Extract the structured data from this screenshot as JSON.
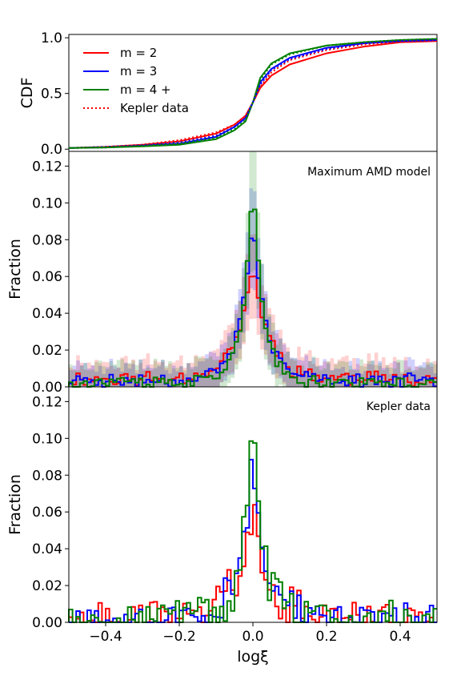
{
  "figure": {
    "xlabel": "logξ",
    "xticks": [
      "−0.4",
      "−0.2",
      "0.0",
      "0.2",
      "0.4"
    ],
    "xtick_values": [
      -0.4,
      -0.2,
      0.0,
      0.2,
      0.4
    ]
  },
  "colors": {
    "m2": "#ff0000",
    "m3": "#0000ff",
    "m4": "#008000"
  },
  "chart_data": [
    {
      "type": "line",
      "panel": "cdf",
      "ylabel": "CDF",
      "xlim": [
        -0.5,
        0.5
      ],
      "ylim": [
        -0.02,
        1.03
      ],
      "yticks": [
        "0.0",
        "0.5",
        "1.0"
      ],
      "ytick_values": [
        0.0,
        0.5,
        1.0
      ],
      "legend": {
        "placement": "top-left",
        "entries": [
          "m = 2",
          "m = 3",
          "m = 4 +",
          "Kepler data"
        ]
      },
      "series": [
        {
          "name": "m = 2",
          "style": "solid",
          "color": "#ff0000",
          "x": [
            -0.5,
            -0.4,
            -0.3,
            -0.2,
            -0.1,
            -0.05,
            -0.02,
            0.0,
            0.02,
            0.05,
            0.1,
            0.2,
            0.3,
            0.4,
            0.5
          ],
          "y": [
            0.01,
            0.02,
            0.04,
            0.07,
            0.14,
            0.22,
            0.3,
            0.42,
            0.55,
            0.66,
            0.76,
            0.86,
            0.92,
            0.96,
            0.97
          ]
        },
        {
          "name": "m = 3",
          "style": "solid",
          "color": "#0000ff",
          "x": [
            -0.5,
            -0.4,
            -0.3,
            -0.2,
            -0.1,
            -0.05,
            -0.02,
            0.0,
            0.02,
            0.05,
            0.1,
            0.2,
            0.3,
            0.4,
            0.5
          ],
          "y": [
            0.01,
            0.015,
            0.03,
            0.05,
            0.11,
            0.2,
            0.28,
            0.42,
            0.6,
            0.72,
            0.82,
            0.91,
            0.95,
            0.97,
            0.98
          ]
        },
        {
          "name": "m = 4 +",
          "style": "solid",
          "color": "#008000",
          "x": [
            -0.5,
            -0.4,
            -0.3,
            -0.2,
            -0.1,
            -0.05,
            -0.02,
            0.0,
            0.02,
            0.05,
            0.1,
            0.2,
            0.3,
            0.4,
            0.5
          ],
          "y": [
            0.01,
            0.015,
            0.025,
            0.04,
            0.09,
            0.17,
            0.25,
            0.42,
            0.64,
            0.77,
            0.86,
            0.93,
            0.96,
            0.98,
            0.99
          ]
        },
        {
          "name": "Kepler m = 2",
          "style": "dotted",
          "color": "#ff0000",
          "x": [
            -0.5,
            -0.4,
            -0.3,
            -0.2,
            -0.1,
            -0.05,
            -0.02,
            0.0,
            0.02,
            0.05,
            0.1,
            0.2,
            0.3,
            0.4,
            0.5
          ],
          "y": [
            0.01,
            0.02,
            0.04,
            0.08,
            0.15,
            0.22,
            0.3,
            0.42,
            0.56,
            0.69,
            0.8,
            0.89,
            0.94,
            0.97,
            0.98
          ]
        },
        {
          "name": "Kepler m = 3",
          "style": "dotted",
          "color": "#0000ff",
          "x": [
            -0.5,
            -0.4,
            -0.3,
            -0.2,
            -0.1,
            -0.05,
            -0.02,
            0.0,
            0.02,
            0.05,
            0.1,
            0.2,
            0.3,
            0.4,
            0.5
          ],
          "y": [
            0.01,
            0.02,
            0.035,
            0.06,
            0.12,
            0.2,
            0.28,
            0.42,
            0.58,
            0.71,
            0.81,
            0.9,
            0.95,
            0.97,
            0.98
          ]
        },
        {
          "name": "Kepler m = 4 +",
          "style": "dotted",
          "color": "#008000",
          "x": [
            -0.5,
            -0.4,
            -0.3,
            -0.2,
            -0.1,
            -0.05,
            -0.02,
            0.0,
            0.02,
            0.05,
            0.1,
            0.2,
            0.3,
            0.4,
            0.5
          ],
          "y": [
            0.01,
            0.015,
            0.03,
            0.05,
            0.1,
            0.18,
            0.26,
            0.42,
            0.62,
            0.76,
            0.85,
            0.93,
            0.96,
            0.98,
            0.99
          ]
        }
      ]
    },
    {
      "type": "line",
      "panel": "model",
      "annotation": "Maximum AMD model",
      "ylabel": "Fraction",
      "xlim": [
        -0.5,
        0.5
      ],
      "ylim": [
        0.0,
        0.128
      ],
      "yticks": [
        "0.00",
        "0.02",
        "0.04",
        "0.06",
        "0.08",
        "0.10",
        "0.12"
      ],
      "ytick_values": [
        0.0,
        0.02,
        0.04,
        0.06,
        0.08,
        0.1,
        0.12
      ],
      "bins": {
        "start": -0.5,
        "width": 0.01,
        "count": 100
      },
      "series": [
        {
          "name": "m = 2",
          "color": "#ff0000",
          "peak": 0.062,
          "width": 0.045,
          "base": 0.004,
          "band": 0.008,
          "seed": 11
        },
        {
          "name": "m = 3",
          "color": "#0000ff",
          "peak": 0.088,
          "width": 0.035,
          "base": 0.003,
          "band": 0.007,
          "seed": 23
        },
        {
          "name": "m = 4 +",
          "color": "#008000",
          "peak": 0.11,
          "width": 0.028,
          "base": 0.002,
          "band": 0.009,
          "seed": 37
        }
      ]
    },
    {
      "type": "line",
      "panel": "kepler",
      "annotation": "Kepler data",
      "ylabel": "Fraction",
      "xlim": [
        -0.5,
        0.5
      ],
      "ylim": [
        0.0,
        0.128
      ],
      "yticks": [
        "0.00",
        "0.02",
        "0.04",
        "0.06",
        "0.08",
        "0.10",
        "0.12"
      ],
      "ytick_values": [
        0.0,
        0.02,
        0.04,
        0.06,
        0.08,
        0.1,
        0.12
      ],
      "bins": {
        "start": -0.5,
        "width": 0.01,
        "count": 100
      },
      "series": [
        {
          "name": "m = 2",
          "color": "#ff0000",
          "peak": 0.058,
          "width": 0.04,
          "base": 0.004,
          "seed": 101,
          "noise": 0.012
        },
        {
          "name": "m = 3",
          "color": "#0000ff",
          "peak": 0.087,
          "width": 0.035,
          "base": 0.004,
          "seed": 202,
          "noise": 0.01
        },
        {
          "name": "m = 4 +",
          "color": "#008000",
          "peak": 0.115,
          "width": 0.025,
          "base": 0.004,
          "seed": 303,
          "noise": 0.012
        }
      ]
    }
  ]
}
